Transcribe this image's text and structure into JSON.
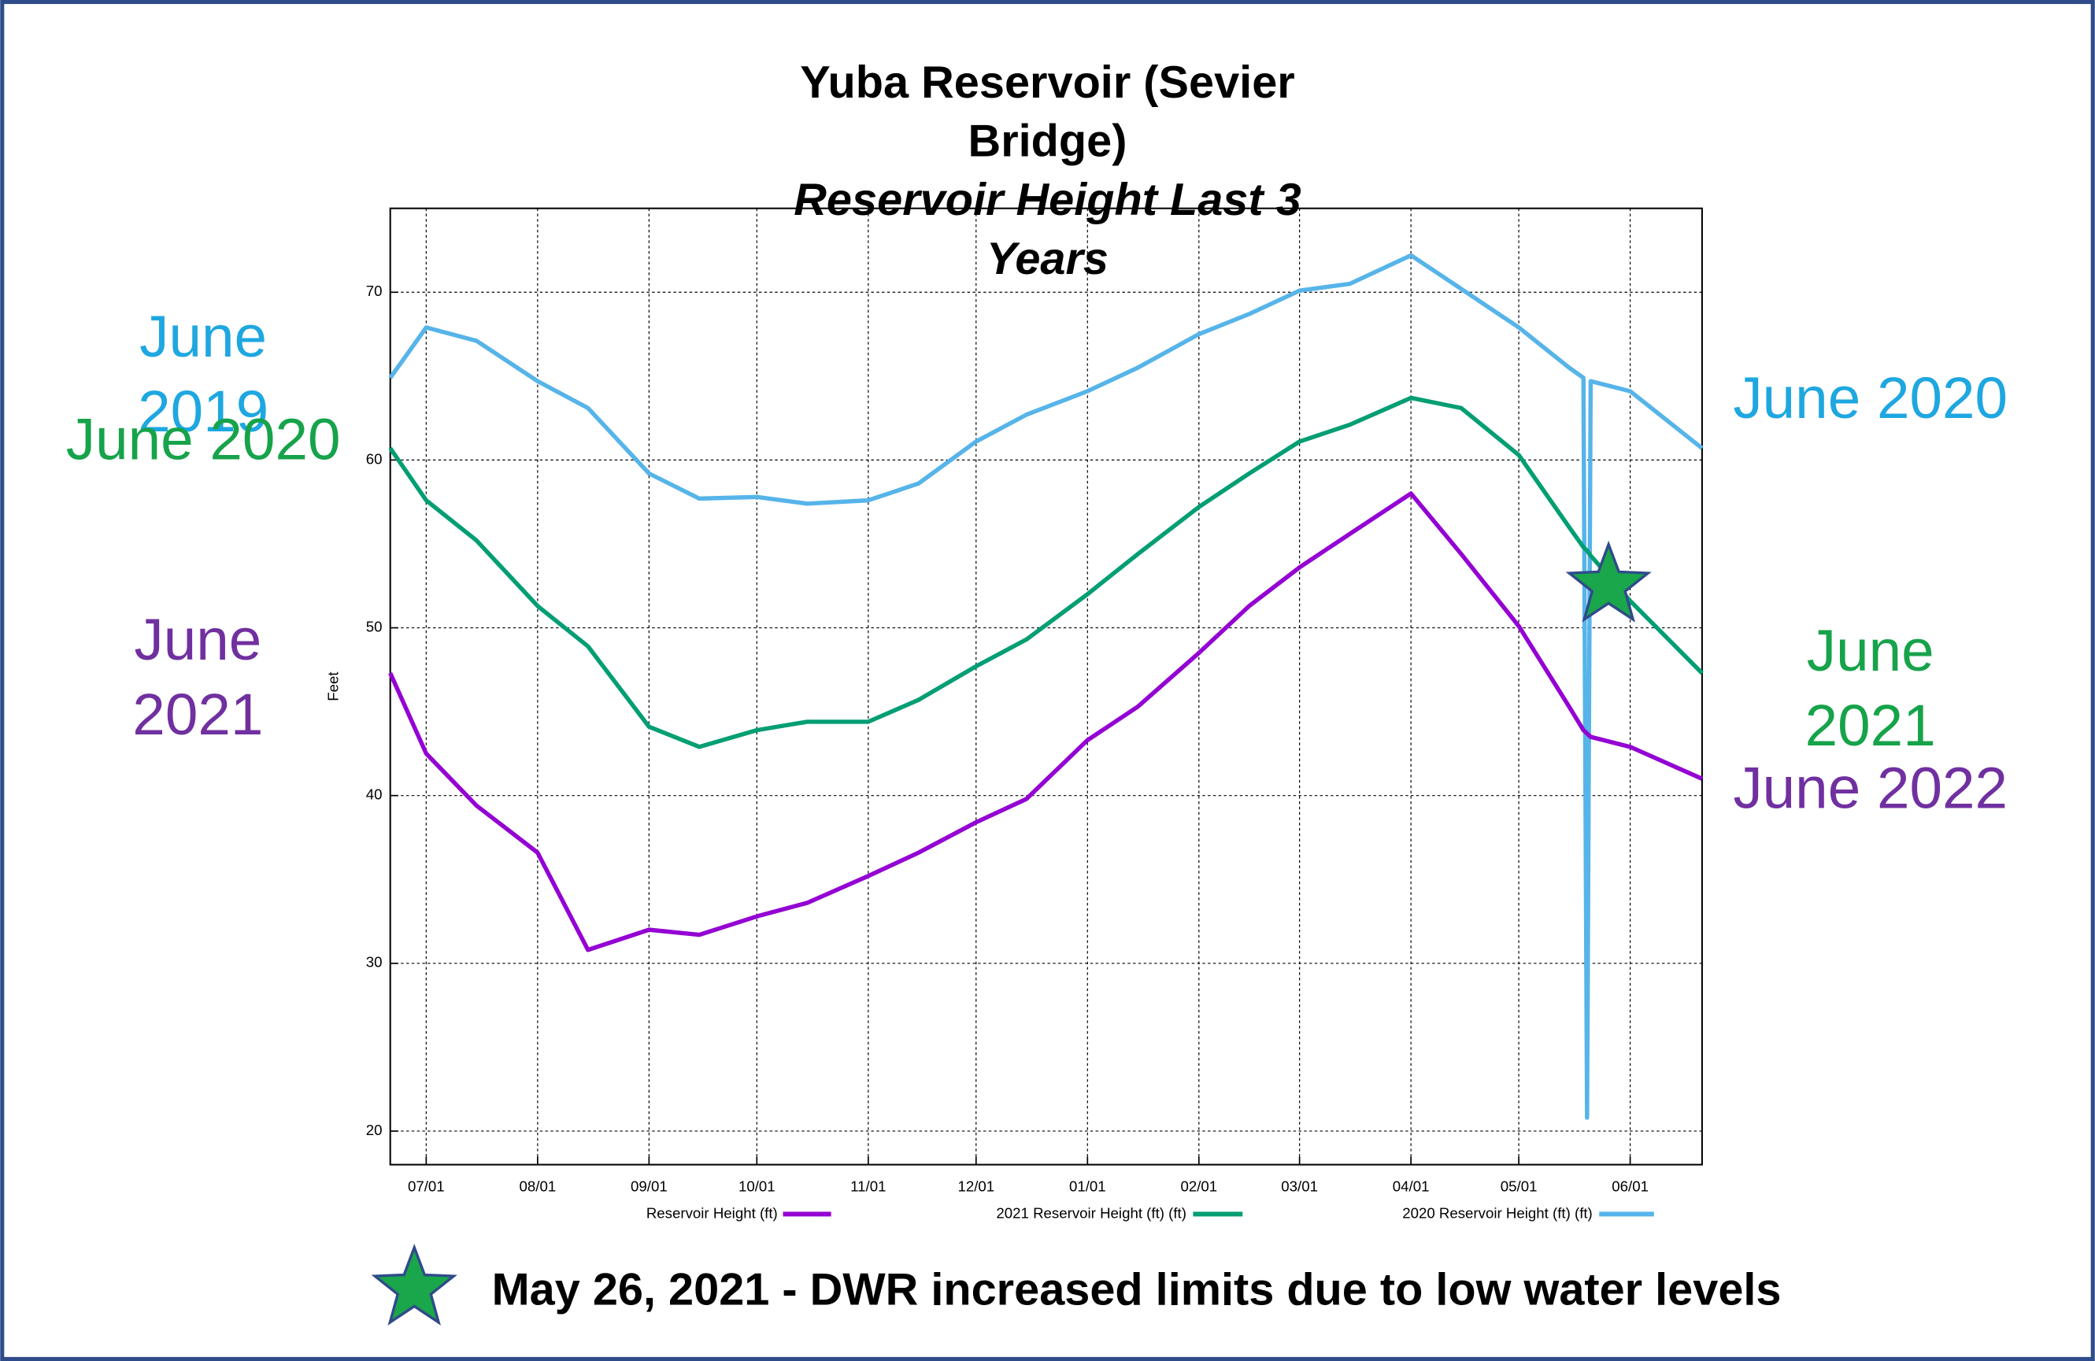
{
  "chart_data": {
    "type": "line",
    "title": "Yuba Reservoir (Sevier Bridge)",
    "subtitle": "Reservoir Height Last 3 Years",
    "y_label": "Feet",
    "x": [
      "06/21",
      "07/01",
      "07/15",
      "08/01",
      "08/15",
      "09/01",
      "09/15",
      "10/01",
      "10/15",
      "11/01",
      "11/15",
      "12/01",
      "12/15",
      "01/01",
      "01/15",
      "02/01",
      "02/15",
      "03/01",
      "03/15",
      "04/01",
      "04/15",
      "05/01",
      "05/15",
      "05/19",
      "05/20",
      "05/21",
      "06/01",
      "06/21"
    ],
    "series": [
      {
        "name": "Reservoir Height (ft)",
        "color": "#9400d3",
        "values": [
          47.3,
          42.5,
          39.4,
          36.6,
          30.8,
          32.0,
          31.7,
          32.8,
          33.6,
          35.2,
          36.6,
          38.4,
          39.8,
          43.3,
          45.3,
          48.5,
          51.3,
          53.6,
          55.6,
          58.0,
          54.4,
          50.1,
          45.3,
          43.9,
          43.7,
          43.5,
          42.9,
          41.0
        ]
      },
      {
        "name": "2021 Reservoir Height (ft) (ft)",
        "color": "#009e73",
        "values": [
          60.7,
          57.6,
          55.2,
          51.3,
          48.9,
          44.1,
          42.9,
          43.9,
          44.4,
          44.4,
          45.7,
          47.7,
          49.3,
          52.0,
          54.4,
          57.2,
          59.2,
          61.1,
          62.1,
          63.7,
          63.1,
          60.3,
          56.0,
          54.8,
          54.6,
          54.3,
          51.6,
          47.3
        ]
      },
      {
        "name": "2020 Reservoir Height (ft) (ft)",
        "color": "#56b4e9",
        "values": [
          64.9,
          67.9,
          67.1,
          64.7,
          63.1,
          59.2,
          57.7,
          57.8,
          57.4,
          57.6,
          58.6,
          61.1,
          62.7,
          64.1,
          65.5,
          67.5,
          68.7,
          70.1,
          70.5,
          72.2,
          70.2,
          67.9,
          65.5,
          64.9,
          20.8,
          64.7,
          64.1,
          60.7
        ]
      }
    ],
    "xlim": [
      "06/21",
      "06/21"
    ],
    "xticks": [
      "07/01",
      "08/01",
      "09/01",
      "10/01",
      "11/01",
      "12/01",
      "01/01",
      "02/01",
      "03/01",
      "04/01",
      "05/01",
      "06/01"
    ],
    "ylim": [
      18,
      75
    ],
    "yticks": [
      20,
      30,
      40,
      50,
      60,
      70
    ],
    "grid": true,
    "star": {
      "x": "05/26",
      "y": 52.5,
      "color": "#1aa64a"
    },
    "annotations": [
      {
        "text": "June 2019",
        "color": "#1ea7e0"
      },
      {
        "text": "June 2020",
        "color": "#16a34a"
      },
      {
        "text": "June 2021",
        "color": "#7030a0"
      },
      {
        "text": "June 2020",
        "color": "#1ea7e0"
      },
      {
        "text": "June 2021",
        "color": "#16a34a"
      },
      {
        "text": "June 2022",
        "color": "#7030a0"
      }
    ],
    "footnote": "May 26, 2021 - DWR increased limits due to low water levels"
  }
}
